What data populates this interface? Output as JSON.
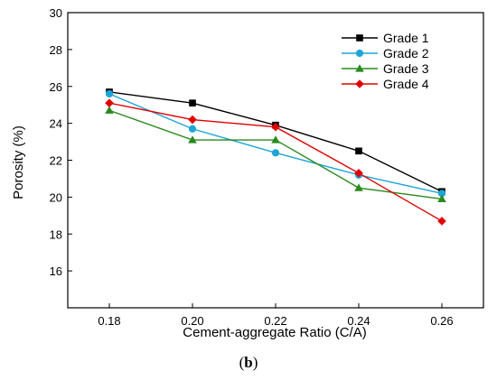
{
  "chart_data": {
    "type": "line",
    "title": "",
    "xlabel": "Cement-aggregate Ratio (C/A)",
    "ylabel": "Porosity (%)",
    "x": [
      0.18,
      0.2,
      0.22,
      0.24,
      0.26
    ],
    "x_tick_labels": [
      "0.18",
      "0.20",
      "0.22",
      "0.24",
      "0.26"
    ],
    "xlim": [
      0.17,
      0.27
    ],
    "ylim": [
      14,
      30
    ],
    "y_ticks": [
      16,
      18,
      20,
      22,
      24,
      26,
      28,
      30
    ],
    "y_tick_labels": [
      "16",
      "18",
      "20",
      "22",
      "24",
      "26",
      "28",
      "30"
    ],
    "grid": false,
    "legend_position": "top-right",
    "series": [
      {
        "name": "Grade 1",
        "color": "#000000",
        "marker": "square",
        "values": [
          25.7,
          25.1,
          23.9,
          22.5,
          20.3
        ]
      },
      {
        "name": "Grade 2",
        "color": "#1ea5d8",
        "marker": "circle",
        "values": [
          25.6,
          23.7,
          22.4,
          21.2,
          20.2
        ]
      },
      {
        "name": "Grade 3",
        "color": "#2a8a1e",
        "marker": "triangle",
        "values": [
          24.7,
          23.1,
          23.1,
          20.5,
          19.9
        ]
      },
      {
        "name": "Grade 4",
        "color": "#e00000",
        "marker": "diamond",
        "values": [
          25.1,
          24.2,
          23.8,
          21.3,
          18.7
        ]
      }
    ]
  },
  "caption": {
    "open": "(",
    "letter": "b",
    "close": ")"
  }
}
